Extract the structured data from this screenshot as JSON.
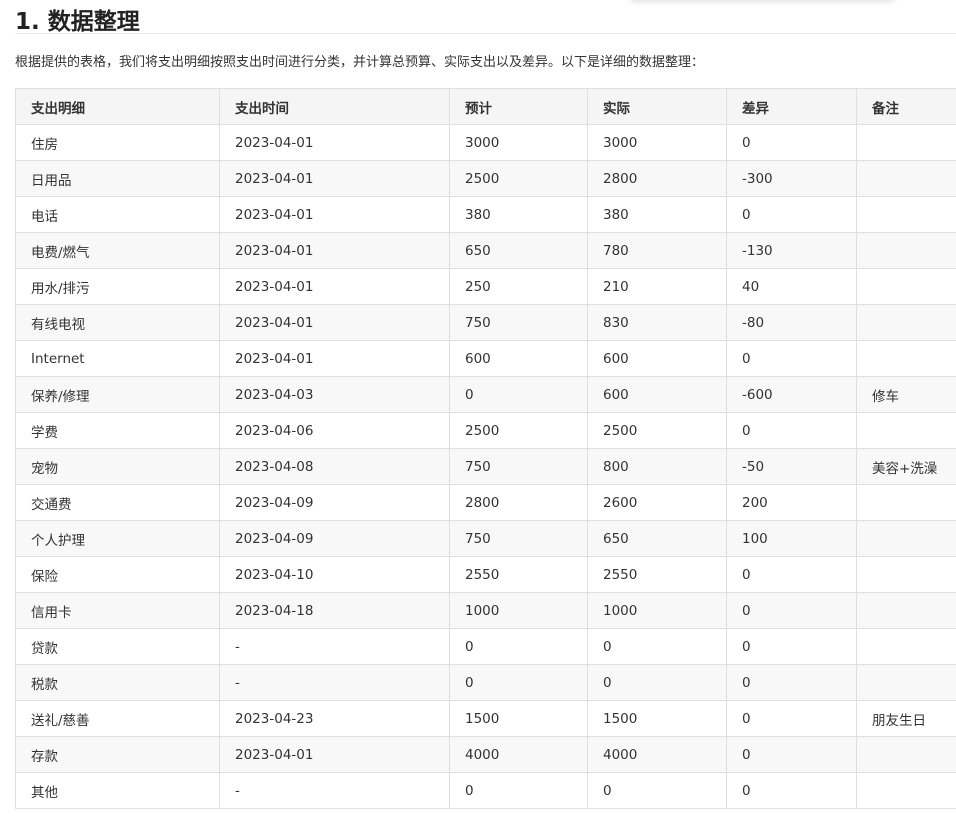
{
  "title": "1. 数据整理",
  "intro": "根据提供的表格，我们将支出明细按照支出时间进行分类，并计算总预算、实际支出以及差异。以下是详细的数据整理：",
  "table": {
    "headers": [
      "支出明细",
      "支出时间",
      "预计",
      "实际",
      "差异",
      "备注"
    ],
    "rows": [
      [
        "住房",
        "2023-04-01",
        "3000",
        "3000",
        "0",
        ""
      ],
      [
        "日用品",
        "2023-04-01",
        "2500",
        "2800",
        "-300",
        ""
      ],
      [
        "电话",
        "2023-04-01",
        "380",
        "380",
        "0",
        ""
      ],
      [
        "电费/燃气",
        "2023-04-01",
        "650",
        "780",
        "-130",
        ""
      ],
      [
        "用水/排污",
        "2023-04-01",
        "250",
        "210",
        "40",
        ""
      ],
      [
        "有线电视",
        "2023-04-01",
        "750",
        "830",
        "-80",
        ""
      ],
      [
        "Internet",
        "2023-04-01",
        "600",
        "600",
        "0",
        ""
      ],
      [
        "保养/修理",
        "2023-04-03",
        "0",
        "600",
        "-600",
        "修车"
      ],
      [
        "学费",
        "2023-04-06",
        "2500",
        "2500",
        "0",
        ""
      ],
      [
        "宠物",
        "2023-04-08",
        "750",
        "800",
        "-50",
        "美容+洗澡"
      ],
      [
        "交通费",
        "2023-04-09",
        "2800",
        "2600",
        "200",
        ""
      ],
      [
        "个人护理",
        "2023-04-09",
        "750",
        "650",
        "100",
        ""
      ],
      [
        "保险",
        "2023-04-10",
        "2550",
        "2550",
        "0",
        ""
      ],
      [
        "信用卡",
        "2023-04-18",
        "1000",
        "1000",
        "0",
        ""
      ],
      [
        "贷款",
        "-",
        "0",
        "0",
        "0",
        ""
      ],
      [
        "税款",
        "-",
        "0",
        "0",
        "0",
        ""
      ],
      [
        "送礼/慈善",
        "2023-04-23",
        "1500",
        "1500",
        "0",
        "朋友生日"
      ],
      [
        "存款",
        "2023-04-01",
        "4000",
        "4000",
        "0",
        ""
      ],
      [
        "其他",
        "-",
        "0",
        "0",
        "0",
        ""
      ]
    ]
  }
}
